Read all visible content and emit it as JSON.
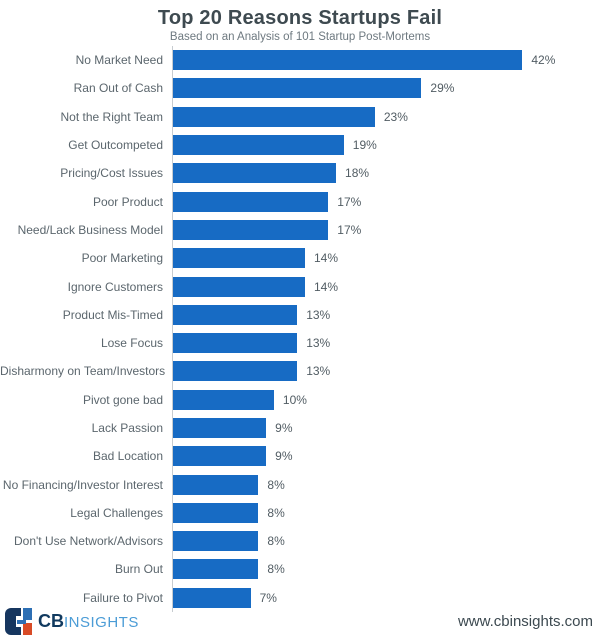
{
  "header": {
    "title": "Top 20 Reasons Startups Fail",
    "subtitle": "Based on an Analysis of 101 Startup Post-Mortems"
  },
  "chart_data": {
    "type": "bar",
    "orientation": "horizontal",
    "title": "Top 20 Reasons Startups Fail",
    "subtitle": "Based on an Analysis of 101 Startup Post-Mortems",
    "categories": [
      "No Market Need",
      "Ran Out of Cash",
      "Not the Right Team",
      "Get Outcompeted",
      "Pricing/Cost Issues",
      "Poor Product",
      "Need/Lack Business Model",
      "Poor Marketing",
      "Ignore Customers",
      "Product Mis-Timed",
      "Lose Focus",
      "Disharmony on Team/Investors",
      "Pivot gone bad",
      "Lack Passion",
      "Bad Location",
      "No Financing/Investor Interest",
      "Legal Challenges",
      "Don't Use Network/Advisors",
      "Burn Out",
      "Failure to Pivot"
    ],
    "values": [
      42,
      29,
      23,
      19,
      18,
      17,
      17,
      14,
      14,
      13,
      13,
      13,
      10,
      9,
      9,
      8,
      8,
      8,
      8,
      7
    ],
    "unit": "%",
    "xlabel": "",
    "ylabel": "",
    "xlim": [
      -3,
      52
    ],
    "grid": false,
    "legend": false,
    "bar_color": "#176bc4",
    "axis_line_color": "#c7ccd0",
    "label_color": "#5b666d"
  },
  "footer": {
    "logo": {
      "cb": "CB",
      "insights": "INSIGHTS",
      "navy": "#16365f",
      "blue": "#2d6fb4",
      "orange": "#d84b27"
    },
    "website": "www.cbinsights.com"
  }
}
